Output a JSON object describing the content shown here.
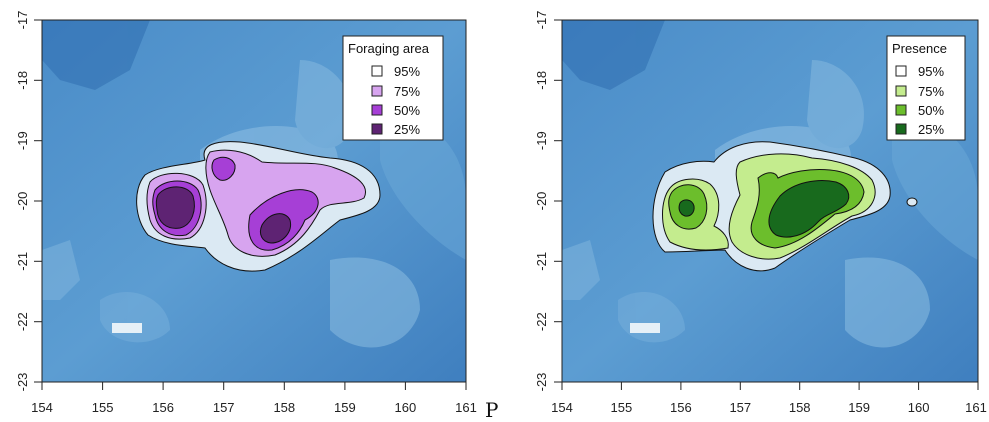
{
  "panels": [
    {
      "legend": {
        "title": "Foraging area",
        "entries": [
          {
            "label": "95%",
            "color": "#ffffff"
          },
          {
            "label": "75%",
            "color": "#d7a4ef"
          },
          {
            "label": "50%",
            "color": "#a63fd6"
          },
          {
            "label": "25%",
            "color": "#5e2373"
          }
        ]
      },
      "x_ticks": [
        "154",
        "155",
        "156",
        "157",
        "158",
        "159",
        "160",
        "161"
      ],
      "y_ticks": [
        "-17",
        "-18",
        "-19",
        "-20",
        "-21",
        "-22",
        "-23"
      ]
    },
    {
      "legend": {
        "title": "Presence",
        "entries": [
          {
            "label": "95%",
            "color": "#ffffff"
          },
          {
            "label": "75%",
            "color": "#c4ec8e"
          },
          {
            "label": "50%",
            "color": "#6cbe2c"
          },
          {
            "label": "25%",
            "color": "#186a1d"
          }
        ]
      },
      "x_ticks": [
        "154",
        "155",
        "156",
        "157",
        "158",
        "159",
        "160",
        "161"
      ],
      "y_ticks": [
        "-17",
        "-18",
        "-19",
        "-20",
        "-21",
        "-22",
        "-23"
      ]
    }
  ],
  "stray_label": "P",
  "colors": {
    "ocean_deep": "#3f7fbf",
    "ocean_mid": "#5b9bd0",
    "ocean_shallow": "#9fc8e4",
    "contour95_fill": "#dbe9f3"
  }
}
